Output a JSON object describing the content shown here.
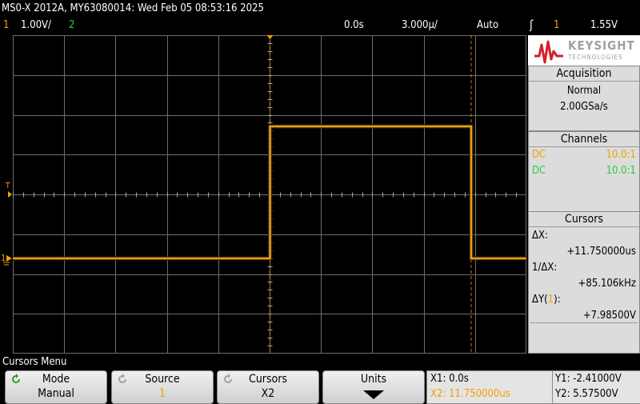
{
  "header": {
    "title": "MS0-X 2012A, MY63080014: Wed Feb 05 08:53:16 2025"
  },
  "status": {
    "ch1_num": "1",
    "ch1_scale": "1.00V/",
    "ch2_num": "2",
    "time_pos": "0.0s",
    "time_scale": "3.000µ/",
    "trigger_mode": "Auto",
    "trigger_icon": "trigger-edge-icon",
    "trigger_source": "1",
    "trigger_level": "1.55V"
  },
  "colors": {
    "ch1": "#f5a000",
    "ch2": "#2ecc40",
    "grid": "#6e6e6e",
    "logo": "#d4202a"
  },
  "logo": {
    "line1": "KEYSIGHT",
    "line2": "TECHNOLOGIES"
  },
  "acquisition": {
    "title": "Acquisition",
    "mode": "Normal",
    "rate": "2.00GSa/s"
  },
  "channels": {
    "title": "Channels",
    "rows": [
      {
        "coupling": "DC",
        "probe": "10.0:1"
      },
      {
        "coupling": "DC",
        "probe": "10.0:1"
      }
    ]
  },
  "cursors": {
    "title": "Cursors",
    "dx_label": "ΔX:",
    "dx_value": "+11.750000us",
    "inv_dx_label": "1/ΔX:",
    "inv_dx_value": "+85.106kHz",
    "dy_label_pre": "ΔY(",
    "dy_label_ch": "1",
    "dy_label_post": "):",
    "dy_value": "+7.98500V"
  },
  "markers": {
    "trigger_level_marker": "T",
    "ch1_ground_marker": "1"
  },
  "menu": {
    "title": "Cursors Menu",
    "softkeys": [
      {
        "name": "Mode",
        "value": "Manual"
      },
      {
        "name": "Source",
        "value": "1"
      },
      {
        "name": "Cursors",
        "value": "X2"
      },
      {
        "name": "Units",
        "value": ""
      }
    ]
  },
  "readout": {
    "x1": "X1: 0.0s",
    "x2": "X2: 11.750000us",
    "y1": "Y1: -2.41000V",
    "y2": "Y2: 5.57500V"
  }
}
